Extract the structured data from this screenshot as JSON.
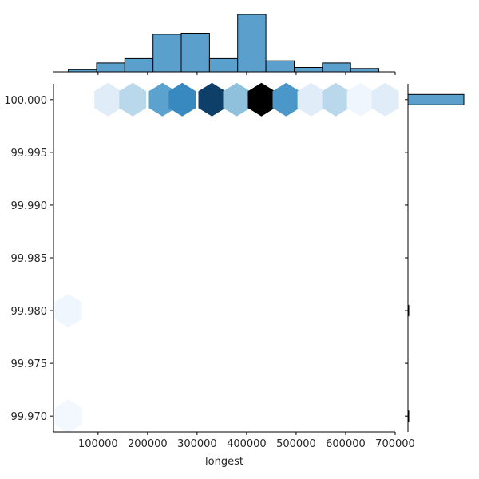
{
  "chart_data": {
    "type": "hexbin-joint",
    "xlabel": "longest",
    "ylabel": "",
    "xlim": [
      10000,
      700000
    ],
    "ylim": [
      99.9685,
      100.0015
    ],
    "x_ticks": [
      100000,
      200000,
      300000,
      400000,
      500000,
      600000,
      700000
    ],
    "y_ticks": [
      99.97,
      99.975,
      99.98,
      99.985,
      99.99,
      99.995,
      100.0
    ],
    "x_tick_labels": [
      "100000",
      "200000",
      "300000",
      "400000",
      "500000",
      "600000",
      "700000"
    ],
    "y_tick_labels": [
      "99.970",
      "99.975",
      "99.980",
      "99.985",
      "99.990",
      "99.995",
      "100.000"
    ],
    "hexbins": [
      {
        "x": 40000,
        "y": 99.98,
        "count": 1
      },
      {
        "x": 40000,
        "y": 99.97,
        "count": 0.6
      },
      {
        "x": 120000,
        "y": 100.0,
        "count": 3
      },
      {
        "x": 170000,
        "y": 100.0,
        "count": 6
      },
      {
        "x": 230000,
        "y": 100.0,
        "count": 12
      },
      {
        "x": 270000,
        "y": 100.0,
        "count": 15
      },
      {
        "x": 330000,
        "y": 100.0,
        "count": 22
      },
      {
        "x": 380000,
        "y": 100.0,
        "count": 9
      },
      {
        "x": 430000,
        "y": 100.0,
        "count": 27
      },
      {
        "x": 480000,
        "y": 100.0,
        "count": 13
      },
      {
        "x": 530000,
        "y": 100.0,
        "count": 3
      },
      {
        "x": 580000,
        "y": 100.0,
        "count": 6
      },
      {
        "x": 630000,
        "y": 100.0,
        "count": 1
      },
      {
        "x": 680000,
        "y": 100.0,
        "count": 3
      }
    ],
    "x_histogram": {
      "bin_edges": [
        40000,
        97000,
        154000,
        211000,
        268000,
        325000,
        382000,
        439000,
        496000,
        553000,
        610000,
        667000
      ],
      "counts": [
        1,
        4,
        6,
        17,
        17.5,
        6,
        26,
        5,
        2,
        4,
        1.5
      ]
    },
    "y_histogram": {
      "bins": [
        {
          "y": 100.0,
          "count": 80
        },
        {
          "y": 99.98,
          "count": 1
        },
        {
          "y": 99.97,
          "count": 0.2
        }
      ]
    },
    "colors": {
      "bar_fill": "#5b9fcd",
      "bar_edge": "#000000",
      "hex_light": "#eef5fc",
      "hex_dark": "#000000"
    }
  }
}
